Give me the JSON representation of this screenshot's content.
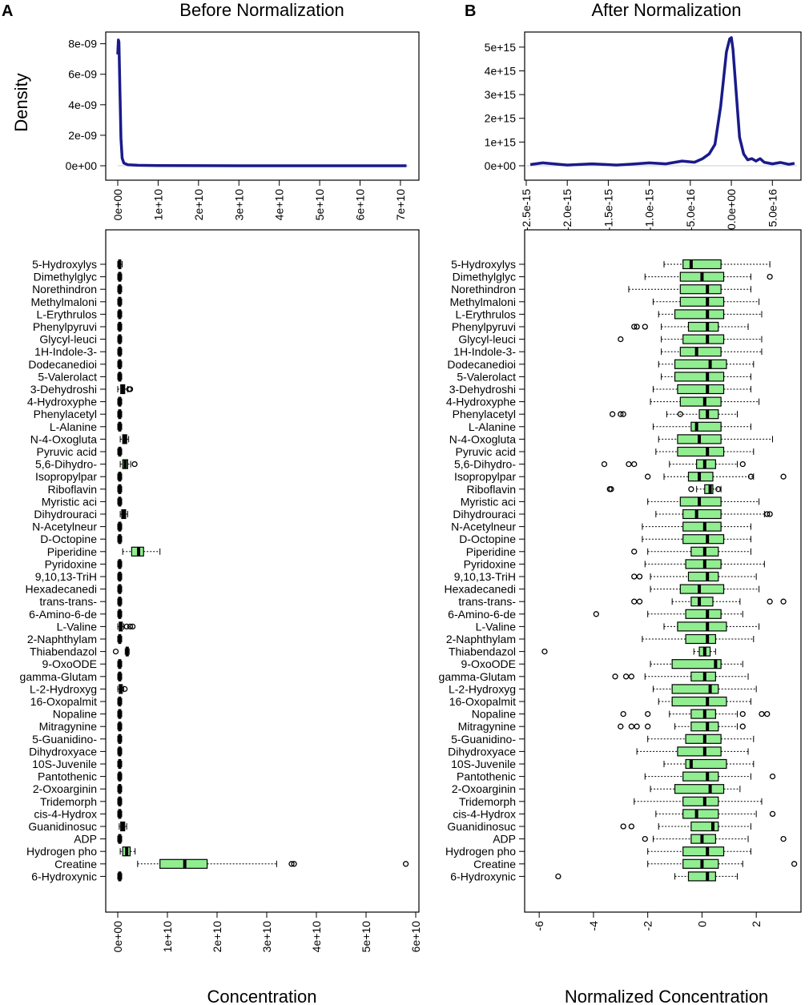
{
  "chart_data": [
    {
      "panel": "A",
      "type": "line",
      "title": "Before Normalization",
      "xlabel": "",
      "ylabel": "Density",
      "xlim": [
        0,
        72000000000
      ],
      "ylim": [
        0,
        8.4e-09
      ],
      "xticks": [
        0,
        10000000000.0,
        20000000000.0,
        30000000000.0,
        40000000000.0,
        50000000000.0,
        60000000000.0,
        70000000000.0
      ],
      "xtick_labels": [
        "0e+00",
        "1e+10",
        "2e+10",
        "3e+10",
        "4e+10",
        "5e+10",
        "6e+10",
        "7e+10"
      ],
      "yticks": [
        0,
        2e-09,
        4e-09,
        6e-09,
        8e-09
      ],
      "ytick_labels": [
        "0e+00",
        "2e-09",
        "4e-09",
        "6e-09",
        "8e-09"
      ],
      "line_color": "#1a1a8c",
      "series": [
        {
          "name": "density",
          "x": [
            0,
            150000000,
            300000000,
            500000000,
            800000000,
            1100000000,
            1500000000,
            2500000000,
            5000000000,
            10000000000,
            30000000000,
            71500000000
          ],
          "y": [
            7.3e-09,
            8.25e-09,
            8.1e-09,
            5.5e-09,
            1.8e-09,
            5e-10,
            1.8e-10,
            7e-11,
            3e-11,
            1e-11,
            0,
            0
          ]
        }
      ]
    },
    {
      "panel": "B",
      "type": "line",
      "title": "After Normalization",
      "xlabel": "",
      "ylabel": "",
      "xlim": [
        -2.5e-15,
        8e-16
      ],
      "ylim": [
        0,
        5400000000000000.0
      ],
      "xticks": [
        -2.5e-15,
        -2e-15,
        -1.5e-15,
        -1e-15,
        -5e-16,
        0,
        5e-16
      ],
      "xtick_labels": [
        "-2.5e-15",
        "-2.0e-15",
        "-1.5e-15",
        "-1.0e-15",
        "-5.0e-16",
        "0.0e+00",
        "5.0e-16"
      ],
      "yticks": [
        0,
        1000000000000000.0,
        2000000000000000.0,
        3000000000000000.0,
        4000000000000000.0,
        5000000000000000.0
      ],
      "ytick_labels": [
        "0e+00",
        "1e+15",
        "2e+15",
        "3e+15",
        "4e+15",
        "5e+15"
      ],
      "line_color": "#1a1a8c",
      "series": [
        {
          "name": "density",
          "x": [
            -2.45e-15,
            -2.3e-15,
            -2e-15,
            -1.7e-15,
            -1.4e-15,
            -1.2e-15,
            -1e-15,
            -8e-16,
            -6e-16,
            -4.5e-16,
            -3.5e-16,
            -2.7e-16,
            -2e-16,
            -1.3e-16,
            -6e-17,
            -2e-17,
            0,
            2e-17,
            5e-17,
            1e-16,
            1.5e-16,
            2e-16,
            2.5e-16,
            3e-16,
            3.5e-16,
            4e-16,
            5e-16,
            6e-16,
            7e-16,
            7.7e-16
          ],
          "y": [
            50000000000000.0,
            120000000000000.0,
            30000000000000.0,
            80000000000000.0,
            30000000000000.0,
            70000000000000.0,
            120000000000000.0,
            80000000000000.0,
            200000000000000.0,
            150000000000000.0,
            300000000000000.0,
            500000000000000.0,
            900000000000000.0,
            2500000000000000.0,
            4800000000000000.0,
            5350000000000000.0,
            5400000000000000.0,
            4900000000000000.0,
            3500000000000000.0,
            1200000000000000.0,
            500000000000000.0,
            250000000000000.0,
            300000000000000.0,
            200000000000000.0,
            300000000000000.0,
            150000000000000.0,
            80000000000000.0,
            140000000000000.0,
            60000000000000.0,
            100000000000000.0
          ]
        }
      ]
    },
    {
      "panel": "A",
      "type": "boxplot",
      "xlabel": "Concentration",
      "xlim": [
        0,
        60000000000
      ],
      "xticks": [
        0,
        10000000000.0,
        20000000000.0,
        30000000000.0,
        40000000000.0,
        50000000000.0,
        60000000000.0
      ],
      "xtick_labels": [
        "0e+00",
        "1e+10",
        "2e+10",
        "3e+10",
        "4e+10",
        "5e+10",
        "6e+10"
      ],
      "box_fill": "#90ee90",
      "categories": [
        "5-Hydroxylys",
        "Dimethylglyc",
        "Norethindron",
        "Methylmaloni",
        "L-Erythrulos",
        "Phenylpyruvi",
        "Glycyl-leuci",
        "1H-Indole-3-",
        "Dodecanedioi",
        "5-Valerolact",
        "3-Dehydroshi",
        "4-Hydroxyphe",
        "Phenylacetyl",
        "L-Alanine",
        "N-4-Oxogluta",
        "Pyruvic acid",
        "5,6-Dihydro-",
        "Isopropylpar",
        "Riboflavin",
        "Myristic aci",
        "Dihydrouraci",
        "N-Acetylneur",
        "D-Octopine",
        "Piperidine",
        "Pyridoxine",
        "9,10,13-TriH",
        "Hexadecanedi",
        "trans-trans-",
        "6-Amino-6-de",
        "L-Valine",
        "2-Naphthylam",
        "Thiabendazol",
        "9-OxoODE",
        "gamma-Glutam",
        "L-2-Hydroxyg",
        "16-Oxopalmit",
        "Nopaline",
        "Mitragynine",
        "5-Guanidino-",
        "Dihydroxyace",
        "10S-Juvenile",
        "Pantothenic ",
        "2-Oxoarginin",
        "Tridemorph",
        "cis-4-Hydrox",
        "Guanidinosuc",
        "ADP",
        "Hydrogen pho",
        "Creatine",
        "6-Hydroxynic"
      ],
      "stats": [
        [
          0.0,
          0.02,
          0.04,
          0.06,
          0.09
        ],
        [
          0.0,
          0.02,
          0.04,
          0.06,
          0.08
        ],
        [
          0.0,
          0.02,
          0.04,
          0.06,
          0.08
        ],
        [
          0.0,
          0.02,
          0.04,
          0.06,
          0.08
        ],
        [
          0.0,
          0.02,
          0.04,
          0.06,
          0.08
        ],
        [
          0.0,
          0.02,
          0.04,
          0.06,
          0.08
        ],
        [
          0.0,
          0.02,
          0.04,
          0.06,
          0.08
        ],
        [
          0.0,
          0.02,
          0.04,
          0.06,
          0.08
        ],
        [
          0.0,
          0.02,
          0.04,
          0.06,
          0.08
        ],
        [
          0.0,
          0.02,
          0.04,
          0.06,
          0.08
        ],
        [
          0.0,
          0.06,
          0.1,
          0.14,
          0.2
        ],
        [
          0.0,
          0.02,
          0.04,
          0.06,
          0.08
        ],
        [
          0.0,
          0.02,
          0.04,
          0.06,
          0.08
        ],
        [
          0.0,
          0.02,
          0.04,
          0.06,
          0.08
        ],
        [
          0.05,
          0.1,
          0.14,
          0.18,
          0.22
        ],
        [
          0.0,
          0.02,
          0.04,
          0.06,
          0.08
        ],
        [
          0.05,
          0.1,
          0.15,
          0.2,
          0.26
        ],
        [
          0.0,
          0.02,
          0.04,
          0.06,
          0.08
        ],
        [
          0.0,
          0.02,
          0.04,
          0.06,
          0.08
        ],
        [
          0.0,
          0.02,
          0.04,
          0.06,
          0.08
        ],
        [
          0.05,
          0.08,
          0.12,
          0.16,
          0.2
        ],
        [
          0.0,
          0.02,
          0.04,
          0.06,
          0.08
        ],
        [
          0.0,
          0.02,
          0.04,
          0.06,
          0.08
        ],
        [
          0.1,
          0.28,
          0.42,
          0.52,
          0.85
        ],
        [
          0.0,
          0.02,
          0.04,
          0.06,
          0.08
        ],
        [
          0.0,
          0.02,
          0.04,
          0.06,
          0.08
        ],
        [
          0.0,
          0.02,
          0.04,
          0.06,
          0.08
        ],
        [
          0.0,
          0.02,
          0.04,
          0.06,
          0.08
        ],
        [
          0.0,
          0.02,
          0.04,
          0.06,
          0.08
        ],
        [
          0.0,
          0.03,
          0.06,
          0.09,
          0.12
        ],
        [
          0.0,
          0.02,
          0.04,
          0.06,
          0.08
        ],
        [
          0.15,
          0.17,
          0.19,
          0.21,
          0.23
        ],
        [
          0.0,
          0.02,
          0.04,
          0.06,
          0.08
        ],
        [
          0.0,
          0.02,
          0.04,
          0.06,
          0.08
        ],
        [
          0.0,
          0.03,
          0.06,
          0.09,
          0.12
        ],
        [
          0.0,
          0.02,
          0.04,
          0.06,
          0.08
        ],
        [
          0.0,
          0.02,
          0.04,
          0.06,
          0.08
        ],
        [
          0.0,
          0.02,
          0.04,
          0.06,
          0.08
        ],
        [
          0.0,
          0.02,
          0.04,
          0.06,
          0.08
        ],
        [
          0.0,
          0.02,
          0.04,
          0.06,
          0.08
        ],
        [
          0.0,
          0.02,
          0.04,
          0.06,
          0.08
        ],
        [
          0.0,
          0.02,
          0.04,
          0.06,
          0.08
        ],
        [
          0.0,
          0.02,
          0.04,
          0.06,
          0.08
        ],
        [
          0.0,
          0.02,
          0.04,
          0.06,
          0.08
        ],
        [
          0.0,
          0.02,
          0.04,
          0.06,
          0.08
        ],
        [
          0.03,
          0.06,
          0.1,
          0.14,
          0.18
        ],
        [
          0.0,
          0.02,
          0.04,
          0.06,
          0.08
        ],
        [
          0.05,
          0.1,
          0.18,
          0.25,
          0.35
        ],
        [
          0.4,
          0.85,
          1.35,
          1.8,
          3.2
        ],
        [
          0.0,
          0.02,
          0.04,
          0.06,
          0.08
        ]
      ],
      "outliers": [
        [],
        [],
        [],
        [],
        [],
        [],
        [],
        [],
        [],
        [],
        [
          0.23,
          0.25
        ],
        [],
        [],
        [],
        [],
        [],
        [
          0.34
        ],
        [],
        [],
        [],
        [],
        [],
        [],
        [],
        [],
        [],
        [],
        [],
        [],
        [
          0.18,
          0.25,
          0.3
        ],
        [],
        [
          -0.04
        ],
        [],
        [],
        [
          0.14
        ],
        [],
        [],
        [],
        [],
        [],
        [],
        [],
        [],
        [],
        [],
        [],
        [],
        [],
        [
          3.5,
          3.55,
          5.8
        ],
        []
      ]
    },
    {
      "panel": "B",
      "type": "boxplot",
      "xlabel": "Normalized Concentration",
      "xlim": [
        -6.3,
        3.5
      ],
      "xticks": [
        -6,
        -4,
        -2,
        0,
        2
      ],
      "xtick_labels": [
        "-6",
        "-4",
        "-2",
        "0",
        "2"
      ],
      "box_fill": "#90ee90",
      "categories": [
        "5-Hydroxylys",
        "Dimethylglyc",
        "Norethindron",
        "Methylmaloni",
        "L-Erythrulos",
        "Phenylpyruvi",
        "Glycyl-leuci",
        "1H-Indole-3-",
        "Dodecanedioi",
        "5-Valerolact",
        "3-Dehydroshi",
        "4-Hydroxyphe",
        "Phenylacetyl",
        "L-Alanine",
        "N-4-Oxogluta",
        "Pyruvic acid",
        "5,6-Dihydro-",
        "Isopropylpar",
        "Riboflavin",
        "Myristic aci",
        "Dihydrouraci",
        "N-Acetylneur",
        "D-Octopine",
        "Piperidine",
        "Pyridoxine",
        "9,10,13-TriH",
        "Hexadecanedi",
        "trans-trans-",
        "6-Amino-6-de",
        "L-Valine",
        "2-Naphthylam",
        "Thiabendazol",
        "9-OxoODE",
        "gamma-Glutam",
        "L-2-Hydroxyg",
        "16-Oxopalmit",
        "Nopaline",
        "Mitragynine",
        "5-Guanidino-",
        "Dihydroxyace",
        "10S-Juvenile",
        "Pantothenic ",
        "2-Oxoarginin",
        "Tridemorph",
        "cis-4-Hydrox",
        "Guanidinosuc",
        "ADP",
        "Hydrogen pho",
        "Creatine",
        "6-Hydroxynic"
      ],
      "stats": [
        [
          -1.4,
          -0.7,
          -0.4,
          0.7,
          2.5
        ],
        [
          -2.1,
          -0.8,
          0.0,
          0.8,
          1.8
        ],
        [
          -2.7,
          -0.8,
          0.2,
          0.7,
          1.8
        ],
        [
          -1.8,
          -0.8,
          0.2,
          0.8,
          2.1
        ],
        [
          -1.6,
          -1.0,
          0.2,
          0.8,
          2.2
        ],
        [
          -1.5,
          -0.5,
          0.2,
          0.6,
          1.7
        ],
        [
          -1.5,
          -0.7,
          0.2,
          0.8,
          2.2
        ],
        [
          -1.5,
          -0.8,
          -0.2,
          0.7,
          2.2
        ],
        [
          -1.6,
          -1.0,
          0.3,
          0.9,
          1.9
        ],
        [
          -1.5,
          -1.0,
          0.2,
          0.8,
          1.8
        ],
        [
          -1.8,
          -0.9,
          0.2,
          0.8,
          1.8
        ],
        [
          -1.9,
          -0.8,
          0.1,
          0.7,
          2.1
        ],
        [
          -1.3,
          -0.1,
          0.2,
          0.6,
          1.3
        ],
        [
          -1.8,
          -0.4,
          -0.2,
          0.7,
          1.8
        ],
        [
          -1.6,
          -0.9,
          -0.1,
          0.7,
          2.6
        ],
        [
          -1.7,
          -0.9,
          0.2,
          0.8,
          1.9
        ],
        [
          -1.2,
          -0.2,
          0.1,
          0.5,
          1.3
        ],
        [
          -1.4,
          -0.5,
          -0.1,
          0.4,
          1.9
        ],
        [
          -0.2,
          0.1,
          0.3,
          0.4,
          0.7
        ],
        [
          -2.0,
          -0.8,
          -0.1,
          0.7,
          2.1
        ],
        [
          -1.7,
          -0.7,
          -0.2,
          0.7,
          2.3
        ],
        [
          -2.2,
          -0.7,
          0.1,
          0.7,
          1.8
        ],
        [
          -2.2,
          -0.7,
          0.2,
          0.8,
          1.8
        ],
        [
          -2.0,
          -0.4,
          0.1,
          0.6,
          1.8
        ],
        [
          -2.1,
          -0.6,
          0.1,
          0.7,
          2.3
        ],
        [
          -1.9,
          -0.5,
          0.2,
          0.6,
          2.0
        ],
        [
          -1.9,
          -0.8,
          -0.1,
          0.8,
          2.1
        ],
        [
          -1.1,
          -0.4,
          -0.1,
          0.4,
          1.4
        ],
        [
          -2.0,
          -0.6,
          0.2,
          0.7,
          1.5
        ],
        [
          -1.4,
          -0.9,
          0.2,
          0.9,
          2.1
        ],
        [
          -2.2,
          -0.6,
          0.2,
          0.5,
          1.9
        ],
        [
          -0.3,
          -0.1,
          0.1,
          0.3,
          0.5
        ],
        [
          -1.9,
          -1.1,
          0.5,
          0.7,
          1.5
        ],
        [
          -2.1,
          -0.4,
          0.1,
          0.5,
          1.7
        ],
        [
          -1.8,
          -1.1,
          0.3,
          0.6,
          2.0
        ],
        [
          -1.6,
          -1.1,
          0.2,
          0.9,
          1.8
        ],
        [
          -1.2,
          -0.4,
          0.1,
          0.5,
          1.3
        ],
        [
          -1.0,
          -0.4,
          0.2,
          0.6,
          1.3
        ],
        [
          -2.0,
          -0.6,
          0.1,
          0.7,
          1.9
        ],
        [
          -2.4,
          -0.9,
          0.1,
          0.7,
          1.7
        ],
        [
          -1.4,
          -0.6,
          -0.4,
          0.9,
          1.9
        ],
        [
          -2.1,
          -0.7,
          0.2,
          0.6,
          1.8
        ],
        [
          -1.9,
          -1.0,
          0.3,
          0.8,
          1.4
        ],
        [
          -2.5,
          -0.7,
          0.1,
          0.6,
          2.2
        ],
        [
          -1.7,
          -0.7,
          -0.2,
          0.6,
          2.0
        ],
        [
          -1.6,
          -0.4,
          0.4,
          0.6,
          1.8
        ],
        [
          -1.8,
          -0.4,
          0.0,
          0.5,
          1.7
        ],
        [
          -2.0,
          -0.7,
          0.2,
          0.8,
          1.8
        ],
        [
          -2.0,
          -0.7,
          0.0,
          0.6,
          1.5
        ],
        [
          -1.0,
          -0.5,
          0.2,
          0.5,
          1.3
        ]
      ],
      "outliers": [
        [],
        [
          2.5
        ],
        [],
        [],
        [],
        [
          -2.5,
          -2.4,
          -2.1
        ],
        [
          -3.0
        ],
        [],
        [],
        [],
        [],
        [],
        [
          -3.3,
          -3.0,
          -2.9,
          -0.8
        ],
        [],
        [],
        [],
        [
          -3.6,
          -2.7,
          -2.5,
          1.5
        ],
        [
          -2.0,
          1.8,
          3.0
        ],
        [
          -3.4,
          -3.35,
          -0.4,
          0.6
        ],
        [],
        [
          2.4,
          2.5
        ],
        [],
        [],
        [
          -2.5
        ],
        [],
        [
          -2.5,
          -2.3
        ],
        [],
        [
          -2.5,
          -2.3,
          2.5,
          3.0
        ],
        [
          -3.9
        ],
        [],
        [],
        [
          -5.8
        ],
        [],
        [
          -3.2,
          -2.8,
          -2.6
        ],
        [],
        [],
        [
          -2.9,
          -2.0,
          1.5,
          2.2,
          2.4
        ],
        [
          -3.0,
          -2.6,
          -2.4,
          -2.0,
          1.5
        ],
        [],
        [],
        [],
        [
          2.6
        ],
        [],
        [],
        [
          2.6
        ],
        [
          -2.9,
          -2.6
        ],
        [
          -2.1,
          3.0
        ],
        [],
        [
          3.4
        ],
        [
          -5.3
        ]
      ]
    }
  ],
  "panel_labels": {
    "a": "A",
    "b": "B"
  }
}
